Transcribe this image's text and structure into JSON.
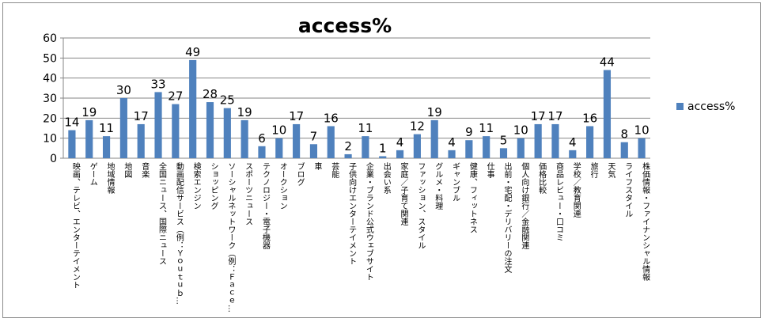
{
  "chart_data": {
    "type": "bar",
    "title": "access%",
    "xlabel": "",
    "ylabel": "",
    "ylim": [
      0,
      60
    ],
    "yticks": [
      0,
      10,
      20,
      30,
      40,
      50,
      60
    ],
    "grid": true,
    "legend": "right",
    "colors": {
      "bar": "#4f81bd",
      "grid": "#868686",
      "text": "#000000"
    },
    "categories": [
      "映画、テレビ、エンターテイメント",
      "ゲーム",
      "地域情報",
      "地図",
      "音楽",
      "全国ニュース、国際ニュース",
      "動画配信サービス（例：Ｙｏｕｔｕｂ…",
      "検索エンジン",
      "ショッピング",
      "ソーシャルネットワーク（例：Ｆａｃｅ…",
      "スポーツニュース",
      "テクノロジー・電子機器",
      "オークション",
      "ブログ",
      "車",
      "芸能",
      "子供向けエンターテイメント",
      "企業・ブランド公式ウェブサイト",
      "出会い系",
      "家庭／子育て関連",
      "ファッション、スタイル",
      "グルメ・料理",
      "ギャンブル",
      "健康、フィットネス",
      "仕事",
      "出前・宅配・デリバリーの注文",
      "個人向け銀行／金融関連",
      "価格比較",
      "商品レビュー・口コミ",
      "学校／教育関連",
      "旅行",
      "天気",
      "ライフスタイル",
      "株価情報・ファイナンシャル情報"
    ],
    "series": [
      {
        "name": "access%",
        "values": [
          14,
          19,
          11,
          30,
          17,
          33,
          27,
          49,
          28,
          25,
          19,
          6,
          10,
          17,
          7,
          16,
          2,
          11,
          1,
          4,
          12,
          19,
          4,
          9,
          11,
          5,
          10,
          17,
          17,
          4,
          16,
          44,
          8,
          10
        ]
      }
    ]
  }
}
